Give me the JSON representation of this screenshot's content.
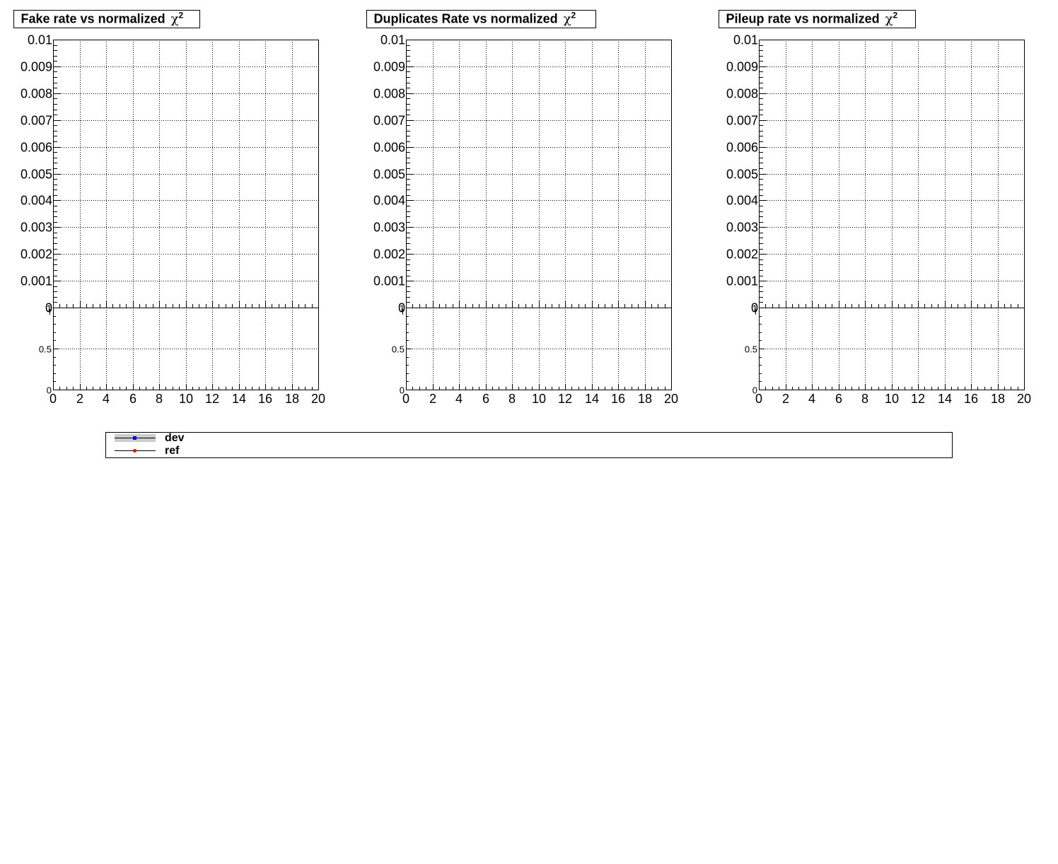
{
  "chart_data": [
    {
      "type": "line",
      "title": "Fake rate vs normalized χ²",
      "title_text": "Fake rate vs normalized",
      "title_symbol": "χ",
      "title_sup": "2",
      "xlim": [
        0,
        20
      ],
      "ylim": [
        0,
        0.01
      ],
      "ratio_ylim": [
        0,
        1
      ],
      "x_ticks": [
        "0",
        "2",
        "4",
        "6",
        "8",
        "10",
        "12",
        "14",
        "16",
        "18",
        "20"
      ],
      "y_ticks": [
        "0",
        "0.001",
        "0.002",
        "0.003",
        "0.004",
        "0.005",
        "0.006",
        "0.007",
        "0.008",
        "0.009",
        "0.01"
      ],
      "ratio_ticks": [
        "0",
        "0.5",
        "1"
      ],
      "grid": true,
      "series": [
        {
          "name": "dev",
          "x": [],
          "y": []
        },
        {
          "name": "ref",
          "x": [],
          "y": []
        }
      ]
    },
    {
      "type": "line",
      "title": "Duplicates Rate vs normalized χ²",
      "title_text": "Duplicates Rate vs normalized",
      "title_symbol": "χ",
      "title_sup": "2",
      "xlim": [
        0,
        20
      ],
      "ylim": [
        0,
        0.01
      ],
      "ratio_ylim": [
        0,
        1
      ],
      "x_ticks": [
        "0",
        "2",
        "4",
        "6",
        "8",
        "10",
        "12",
        "14",
        "16",
        "18",
        "20"
      ],
      "y_ticks": [
        "0",
        "0.001",
        "0.002",
        "0.003",
        "0.004",
        "0.005",
        "0.006",
        "0.007",
        "0.008",
        "0.009",
        "0.01"
      ],
      "ratio_ticks": [
        "0",
        "0.5",
        "1"
      ],
      "grid": true,
      "series": [
        {
          "name": "dev",
          "x": [],
          "y": []
        },
        {
          "name": "ref",
          "x": [],
          "y": []
        }
      ]
    },
    {
      "type": "line",
      "title": "Pileup rate vs normalized χ²",
      "title_text": "Pileup rate vs normalized",
      "title_symbol": "χ",
      "title_sup": "2",
      "xlim": [
        0,
        20
      ],
      "ylim": [
        0,
        0.01
      ],
      "ratio_ylim": [
        0,
        1
      ],
      "x_ticks": [
        "0",
        "2",
        "4",
        "6",
        "8",
        "10",
        "12",
        "14",
        "16",
        "18",
        "20"
      ],
      "y_ticks": [
        "0",
        "0.001",
        "0.002",
        "0.003",
        "0.004",
        "0.005",
        "0.006",
        "0.007",
        "0.008",
        "0.009",
        "0.01"
      ],
      "ratio_ticks": [
        "0",
        "0.5",
        "1"
      ],
      "grid": true,
      "series": [
        {
          "name": "dev",
          "x": [],
          "y": []
        },
        {
          "name": "ref",
          "x": [],
          "y": []
        }
      ]
    }
  ],
  "legend": {
    "entries": [
      {
        "label": "dev",
        "marker_color": "#0000ff",
        "band_color": "#cccccc"
      },
      {
        "label": "ref",
        "marker_color": "#ff0000"
      }
    ]
  }
}
